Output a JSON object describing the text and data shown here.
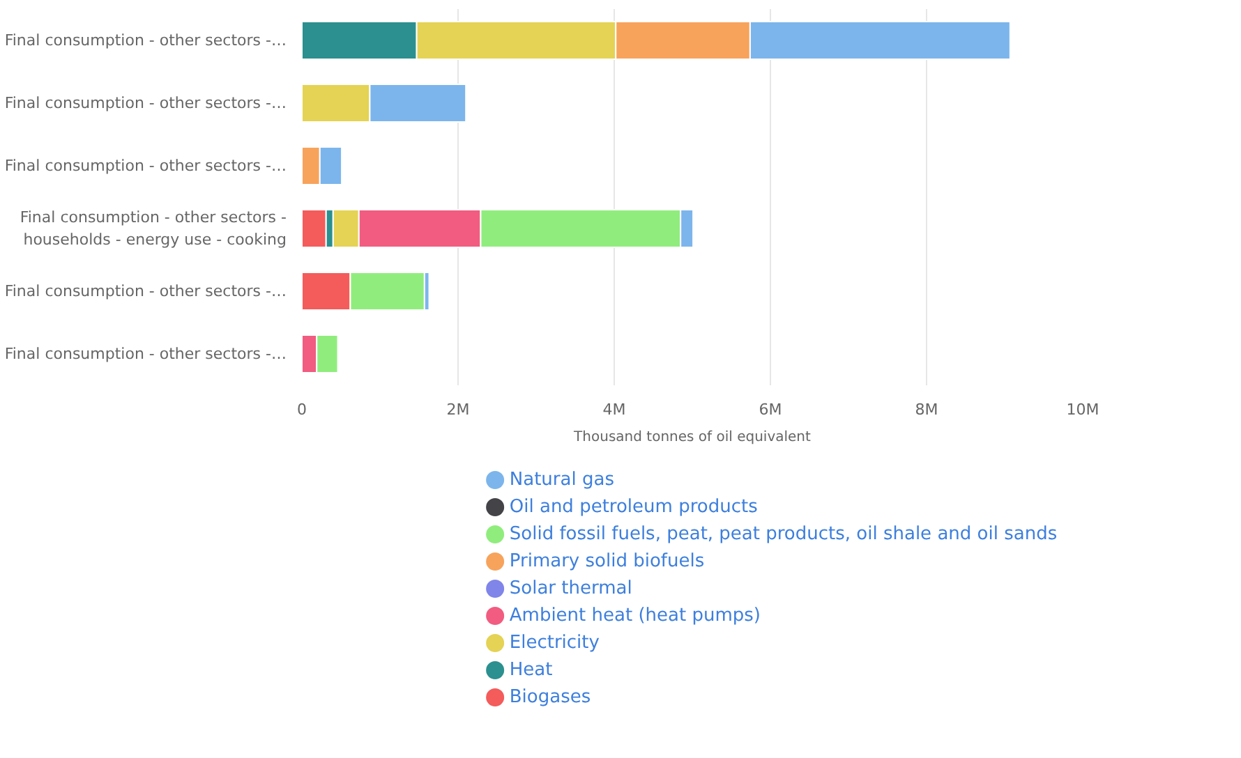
{
  "chart_data": {
    "type": "bar",
    "orientation": "horizontal",
    "stacked": true,
    "categories": [
      "Final consumption - other sectors -…",
      "Final consumption - other sectors -…",
      "Final consumption - other sectors -…",
      "Final consumption - other sectors - households - energy use - cooking",
      "Final consumption - other sectors -…",
      "Final consumption - other sectors -…"
    ],
    "xlabel": "Thousand tonnes of oil equivalent",
    "xlim": [
      0,
      10000000
    ],
    "xticks": [
      {
        "value": 0,
        "label": "0"
      },
      {
        "value": 2000000,
        "label": "2M"
      },
      {
        "value": 4000000,
        "label": "4M"
      },
      {
        "value": 6000000,
        "label": "6M"
      },
      {
        "value": 8000000,
        "label": "8M"
      },
      {
        "value": 10000000,
        "label": "10M"
      }
    ],
    "grid": "x",
    "legend": "bottom",
    "series": [
      {
        "name": "Biogases",
        "color": "#f45b5b",
        "values": [
          null,
          null,
          null,
          310000,
          620000,
          null
        ]
      },
      {
        "name": "Heat",
        "color": "#2b908f",
        "values": [
          1470000,
          null,
          null,
          90000,
          null,
          null
        ]
      },
      {
        "name": "Electricity",
        "color": "#e4d354",
        "values": [
          2550000,
          870000,
          null,
          330000,
          null,
          null
        ]
      },
      {
        "name": "Ambient heat (heat pumps)",
        "color": "#f15c80",
        "values": [
          null,
          null,
          null,
          1560000,
          null,
          190000
        ]
      },
      {
        "name": "Solar thermal",
        "color": "#8085e9",
        "values": [
          null,
          null,
          null,
          null,
          null,
          null
        ]
      },
      {
        "name": "Primary solid biofuels",
        "color": "#f7a35c",
        "values": [
          1720000,
          null,
          230000,
          null,
          null,
          null
        ]
      },
      {
        "name": "Solid fossil fuels, peat, peat products, oil shale and oil sands",
        "color": "#90ed7d",
        "values": [
          null,
          null,
          null,
          2560000,
          950000,
          270000
        ]
      },
      {
        "name": "Oil and petroleum products",
        "color": "#434348",
        "values": [
          null,
          null,
          null,
          null,
          null,
          null
        ]
      },
      {
        "name": "Natural gas",
        "color": "#7cb5ec",
        "values": [
          3330000,
          1230000,
          280000,
          160000,
          60000,
          null
        ]
      }
    ]
  }
}
